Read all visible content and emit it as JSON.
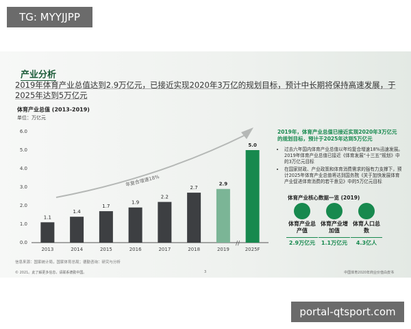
{
  "watermark_top": "TG: MYYJJPP",
  "watermark_bottom": "portal-qtsport.com",
  "slide": {
    "heading": "产业分析",
    "summary": "2019年体育产业总值达到2.9万亿元，已接近实现2020年3万亿的规划目标，预计中长期将保持高速发展，于2025年达到5万亿元",
    "side_heading": "2019年，体育产业总值已接近实现2020年3万亿元的规划目标，预计于2025年达到5万亿元",
    "bullets": [
      "过去六年国内体育产业总值以年均复合增速18%迅速发展。2019年体育产业总值已接近《体育发展“十三五”规划》中的3万亿元目标",
      "在国家财政、产业政策和体育消费需求的强有力支撑下，预计2025年体育产业总值将达到国务院《关于加快发展体育产业促进体育消费的若干意见》中的5万亿元目标"
    ],
    "kpi_title": "体育产业核心数据一览 (2019)",
    "kpis": [
      {
        "label": "体育产业总产值",
        "value": "2.9万亿元"
      },
      {
        "label": "体育产业增加值",
        "value": "1.1万亿元"
      },
      {
        "label": "体育人口总数",
        "value": "4.3亿人"
      }
    ],
    "source": "信息来源：国家统计局，国家体育总局；德勤咨询：研究与分析",
    "footer_left": "© 2021。此了解更多信息，请联系德勤中国。",
    "page_number": "3",
    "footer_right": "中国体育2020年商业价值白皮书"
  },
  "chart_data": {
    "type": "bar",
    "title": "体育产业总值 (2013-2019)",
    "subtitle": "单位：万亿元",
    "categories": [
      "2013",
      "2014",
      "2015",
      "2016",
      "2017",
      "2018",
      "2019",
      "2025F"
    ],
    "values": [
      1.1,
      1.4,
      1.7,
      1.9,
      2.2,
      2.7,
      2.9,
      5
    ],
    "value_labels": [
      "1.1",
      "1.4",
      "1.7",
      "1.9",
      "2.2",
      "2.7",
      "2.9",
      "5.0"
    ],
    "colors": [
      "#3d3f42",
      "#3d3f42",
      "#3d3f42",
      "#3d3f42",
      "#3d3f42",
      "#3d3f42",
      "#7bb596",
      "#17894e"
    ],
    "annotation": "年复合增速18%",
    "ylim": [
      0,
      6
    ],
    "yticks": [
      {
        "value": 0,
        "label": "0.0"
      },
      {
        "value": 1,
        "label": "1.0"
      },
      {
        "value": 2,
        "label": "2.0"
      },
      {
        "value": 3,
        "label": "3.0"
      },
      {
        "value": 4,
        "label": "4.0"
      },
      {
        "value": 5,
        "label": "5.0"
      },
      {
        "value": 6,
        "label": "6.0"
      }
    ],
    "grid": false
  }
}
